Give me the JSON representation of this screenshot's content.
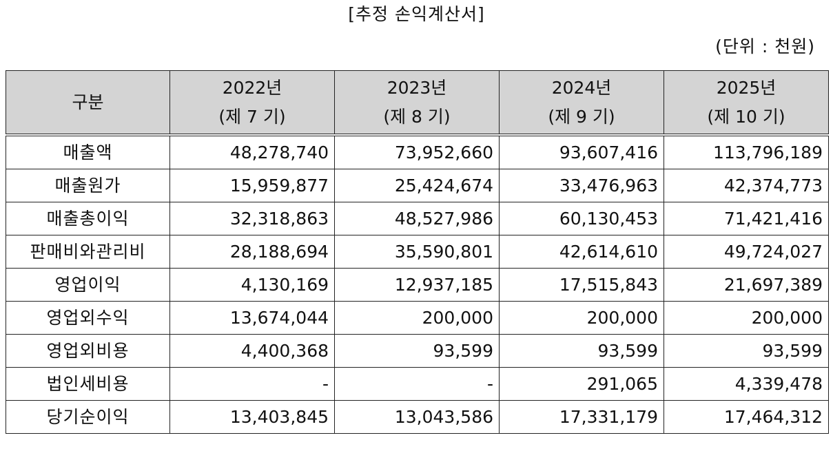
{
  "title": "[추정 손익계산서]",
  "unit": "(단위 : 천원)",
  "table": {
    "header_label": "구분",
    "years": [
      {
        "year": "2022년",
        "period": "(제 7 기)"
      },
      {
        "year": "2023년",
        "period": "(제 8 기)"
      },
      {
        "year": "2024년",
        "period": "(제 9 기)"
      },
      {
        "year": "2025년",
        "period": "(제 10 기)"
      }
    ],
    "rows": [
      {
        "label": "매출액",
        "values": [
          "48,278,740",
          "73,952,660",
          "93,607,416",
          "113,796,189"
        ]
      },
      {
        "label": "매출원가",
        "values": [
          "15,959,877",
          "25,424,674",
          "33,476,963",
          "42,374,773"
        ]
      },
      {
        "label": "매출총이익",
        "values": [
          "32,318,863",
          "48,527,986",
          "60,130,453",
          "71,421,416"
        ]
      },
      {
        "label": "판매비와관리비",
        "values": [
          "28,188,694",
          "35,590,801",
          "42,614,610",
          "49,724,027"
        ]
      },
      {
        "label": "영업이익",
        "values": [
          "4,130,169",
          "12,937,185",
          "17,515,843",
          "21,697,389"
        ]
      },
      {
        "label": "영업외수익",
        "values": [
          "13,674,044",
          "200,000",
          "200,000",
          "200,000"
        ]
      },
      {
        "label": "영업외비용",
        "values": [
          "4,400,368",
          "93,599",
          "93,599",
          "93,599"
        ]
      },
      {
        "label": "법인세비용",
        "values": [
          "-",
          "-",
          "291,065",
          "4,339,478"
        ]
      },
      {
        "label": "당기순이익",
        "values": [
          "13,403,845",
          "13,043,586",
          "17,331,179",
          "17,464,312"
        ]
      }
    ]
  }
}
